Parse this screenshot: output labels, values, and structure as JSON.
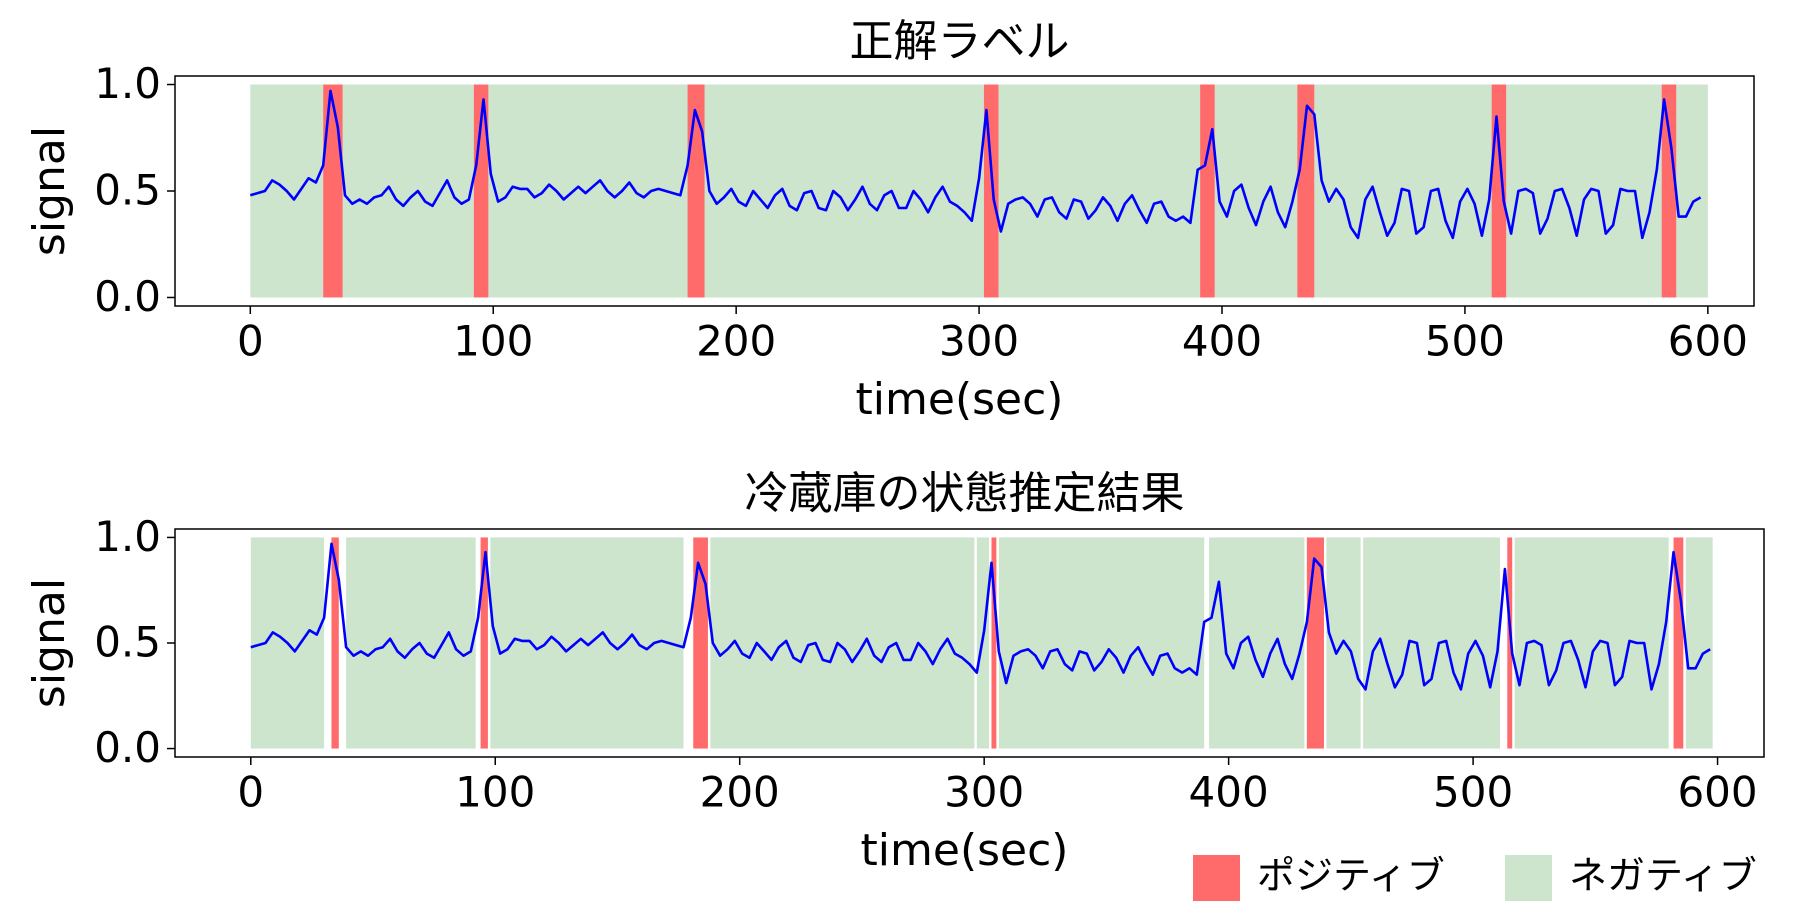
{
  "chart_data": [
    {
      "type": "span-line",
      "title": "正解ラベル",
      "x_label": "time(sec)",
      "y_label": "signal",
      "xlim": [
        -31,
        619
      ],
      "ylim": [
        -0.04,
        1.04
      ],
      "xticks": [
        0,
        100,
        200,
        300,
        400,
        500,
        600
      ],
      "yticks": [
        {
          "value": 0,
          "label": "0.0"
        },
        {
          "value": 0.5,
          "label": "0.5"
        },
        {
          "value": 1,
          "label": "1.0"
        }
      ],
      "spans": [
        {
          "color": "#cde5cc",
          "intervals": [
            [
              0,
              30
            ],
            [
              38,
              92
            ],
            [
              98,
              180
            ],
            [
              187,
              302
            ],
            [
              308,
              391
            ],
            [
              397,
              431
            ],
            [
              438,
              511
            ],
            [
              517,
              581
            ],
            [
              587,
              600
            ]
          ]
        },
        {
          "color": "#ff6a6a",
          "intervals": [
            [
              30,
              38
            ],
            [
              92,
              98
            ],
            [
              180,
              187
            ],
            [
              302,
              308
            ],
            [
              391,
              397
            ],
            [
              431,
              438
            ],
            [
              511,
              517
            ],
            [
              581,
              587
            ]
          ]
        }
      ],
      "line": {
        "color": "#0000ff",
        "x": [
          0,
          3,
          6,
          9,
          12,
          15,
          18,
          21,
          24,
          27,
          30,
          33,
          36,
          39,
          42,
          45,
          48,
          51,
          54,
          57,
          60,
          63,
          66,
          69,
          72,
          75,
          78,
          81,
          84,
          87,
          90,
          93,
          96,
          99,
          102,
          105,
          108,
          111,
          114,
          117,
          120,
          123,
          126,
          129,
          132,
          135,
          138,
          141,
          144,
          147,
          150,
          153,
          156,
          159,
          162,
          165,
          168,
          171,
          174,
          177,
          180,
          183,
          186,
          189,
          192,
          195,
          198,
          201,
          204,
          207,
          210,
          213,
          216,
          219,
          222,
          225,
          228,
          231,
          234,
          237,
          240,
          243,
          246,
          249,
          252,
          255,
          258,
          261,
          264,
          267,
          270,
          273,
          276,
          279,
          282,
          285,
          288,
          291,
          294,
          297,
          300,
          303,
          306,
          309,
          312,
          315,
          318,
          321,
          324,
          327,
          330,
          333,
          336,
          339,
          342,
          345,
          348,
          351,
          354,
          357,
          360,
          363,
          366,
          369,
          372,
          375,
          378,
          381,
          384,
          387,
          390,
          393,
          396,
          399,
          402,
          405,
          408,
          411,
          414,
          417,
          420,
          423,
          426,
          429,
          432,
          435,
          438,
          441,
          444,
          447,
          450,
          453,
          456,
          459,
          462,
          465,
          468,
          471,
          474,
          477,
          480,
          483,
          486,
          489,
          492,
          495,
          498,
          501,
          504,
          507,
          510,
          513,
          516,
          519,
          522,
          525,
          528,
          531,
          534,
          537,
          540,
          543,
          546,
          549,
          552,
          555,
          558,
          561,
          564,
          567,
          570,
          573,
          576,
          579,
          582,
          585,
          588,
          591,
          594,
          597
        ],
        "values": [
          0.48,
          0.49,
          0.5,
          0.55,
          0.53,
          0.5,
          0.46,
          0.51,
          0.56,
          0.54,
          0.62,
          0.97,
          0.8,
          0.48,
          0.44,
          0.46,
          0.44,
          0.47,
          0.48,
          0.52,
          0.46,
          0.43,
          0.47,
          0.5,
          0.45,
          0.43,
          0.49,
          0.55,
          0.47,
          0.44,
          0.46,
          0.62,
          0.93,
          0.58,
          0.45,
          0.47,
          0.52,
          0.51,
          0.51,
          0.47,
          0.49,
          0.53,
          0.5,
          0.46,
          0.49,
          0.52,
          0.49,
          0.52,
          0.55,
          0.5,
          0.47,
          0.5,
          0.54,
          0.49,
          0.47,
          0.5,
          0.51,
          0.5,
          0.49,
          0.48,
          0.62,
          0.88,
          0.78,
          0.5,
          0.44,
          0.47,
          0.51,
          0.45,
          0.43,
          0.5,
          0.46,
          0.42,
          0.48,
          0.51,
          0.43,
          0.41,
          0.49,
          0.5,
          0.42,
          0.41,
          0.5,
          0.47,
          0.41,
          0.46,
          0.52,
          0.44,
          0.41,
          0.48,
          0.5,
          0.42,
          0.42,
          0.5,
          0.46,
          0.4,
          0.47,
          0.52,
          0.45,
          0.43,
          0.4,
          0.36,
          0.56,
          0.88,
          0.46,
          0.31,
          0.44,
          0.46,
          0.47,
          0.44,
          0.38,
          0.46,
          0.47,
          0.4,
          0.37,
          0.46,
          0.45,
          0.37,
          0.41,
          0.47,
          0.43,
          0.36,
          0.44,
          0.48,
          0.41,
          0.35,
          0.44,
          0.45,
          0.38,
          0.36,
          0.38,
          0.35,
          0.6,
          0.62,
          0.79,
          0.45,
          0.38,
          0.5,
          0.53,
          0.42,
          0.34,
          0.45,
          0.52,
          0.4,
          0.33,
          0.45,
          0.6,
          0.9,
          0.86,
          0.55,
          0.45,
          0.51,
          0.46,
          0.33,
          0.28,
          0.46,
          0.52,
          0.4,
          0.29,
          0.35,
          0.51,
          0.5,
          0.3,
          0.33,
          0.5,
          0.51,
          0.36,
          0.28,
          0.45,
          0.51,
          0.44,
          0.29,
          0.46,
          0.85,
          0.45,
          0.3,
          0.5,
          0.51,
          0.49,
          0.3,
          0.37,
          0.5,
          0.51,
          0.42,
          0.29,
          0.46,
          0.51,
          0.5,
          0.3,
          0.34,
          0.51,
          0.5,
          0.5,
          0.28,
          0.4,
          0.6,
          0.93,
          0.7,
          0.38,
          0.38,
          0.45,
          0.47
        ]
      }
    },
    {
      "type": "span-line",
      "title": "冷蔵庫の状態推定結果",
      "x_label": "time(sec)",
      "y_label": "signal",
      "xlim": [
        -31,
        619
      ],
      "ylim": [
        -0.04,
        1.04
      ],
      "xticks": [
        0,
        100,
        200,
        300,
        400,
        500,
        600
      ],
      "yticks": [
        {
          "value": 0,
          "label": "0.0"
        },
        {
          "value": 0.5,
          "label": "0.5"
        },
        {
          "value": 1,
          "label": "1.0"
        }
      ],
      "legend": "lower right",
      "spans": [
        {
          "name": "ポジティブ",
          "color": "#ff6a6a",
          "intervals": [
            [
              33,
              36
            ],
            [
              94,
              97
            ],
            [
              181,
              187
            ],
            [
              303,
              305
            ],
            [
              432,
              439
            ],
            [
              514,
              516
            ],
            [
              582,
              586
            ]
          ]
        },
        {
          "name": "ネガティブ",
          "color": "#cde5cc",
          "intervals": [
            [
              0,
              30
            ],
            [
              39,
              92
            ],
            [
              98,
              177
            ],
            [
              188,
              296
            ],
            [
              297,
              302
            ],
            [
              306,
              390
            ],
            [
              392,
              431
            ],
            [
              440,
              454
            ],
            [
              455,
              511
            ],
            [
              517,
              580
            ],
            [
              587,
              598
            ]
          ]
        }
      ],
      "line": {
        "color": "#0000ff",
        "x": [
          0,
          3,
          6,
          9,
          12,
          15,
          18,
          21,
          24,
          27,
          30,
          33,
          36,
          39,
          42,
          45,
          48,
          51,
          54,
          57,
          60,
          63,
          66,
          69,
          72,
          75,
          78,
          81,
          84,
          87,
          90,
          93,
          96,
          99,
          102,
          105,
          108,
          111,
          114,
          117,
          120,
          123,
          126,
          129,
          132,
          135,
          138,
          141,
          144,
          147,
          150,
          153,
          156,
          159,
          162,
          165,
          168,
          171,
          174,
          177,
          180,
          183,
          186,
          189,
          192,
          195,
          198,
          201,
          204,
          207,
          210,
          213,
          216,
          219,
          222,
          225,
          228,
          231,
          234,
          237,
          240,
          243,
          246,
          249,
          252,
          255,
          258,
          261,
          264,
          267,
          270,
          273,
          276,
          279,
          282,
          285,
          288,
          291,
          294,
          297,
          300,
          303,
          306,
          309,
          312,
          315,
          318,
          321,
          324,
          327,
          330,
          333,
          336,
          339,
          342,
          345,
          348,
          351,
          354,
          357,
          360,
          363,
          366,
          369,
          372,
          375,
          378,
          381,
          384,
          387,
          390,
          393,
          396,
          399,
          402,
          405,
          408,
          411,
          414,
          417,
          420,
          423,
          426,
          429,
          432,
          435,
          438,
          441,
          444,
          447,
          450,
          453,
          456,
          459,
          462,
          465,
          468,
          471,
          474,
          477,
          480,
          483,
          486,
          489,
          492,
          495,
          498,
          501,
          504,
          507,
          510,
          513,
          516,
          519,
          522,
          525,
          528,
          531,
          534,
          537,
          540,
          543,
          546,
          549,
          552,
          555,
          558,
          561,
          564,
          567,
          570,
          573,
          576,
          579,
          582,
          585,
          588,
          591,
          594,
          597
        ],
        "values": [
          0.48,
          0.49,
          0.5,
          0.55,
          0.53,
          0.5,
          0.46,
          0.51,
          0.56,
          0.54,
          0.62,
          0.97,
          0.8,
          0.48,
          0.44,
          0.46,
          0.44,
          0.47,
          0.48,
          0.52,
          0.46,
          0.43,
          0.47,
          0.5,
          0.45,
          0.43,
          0.49,
          0.55,
          0.47,
          0.44,
          0.46,
          0.62,
          0.93,
          0.58,
          0.45,
          0.47,
          0.52,
          0.51,
          0.51,
          0.47,
          0.49,
          0.53,
          0.5,
          0.46,
          0.49,
          0.52,
          0.49,
          0.52,
          0.55,
          0.5,
          0.47,
          0.5,
          0.54,
          0.49,
          0.47,
          0.5,
          0.51,
          0.5,
          0.49,
          0.48,
          0.62,
          0.88,
          0.78,
          0.5,
          0.44,
          0.47,
          0.51,
          0.45,
          0.43,
          0.5,
          0.46,
          0.42,
          0.48,
          0.51,
          0.43,
          0.41,
          0.49,
          0.5,
          0.42,
          0.41,
          0.5,
          0.47,
          0.41,
          0.46,
          0.52,
          0.44,
          0.41,
          0.48,
          0.5,
          0.42,
          0.42,
          0.5,
          0.46,
          0.4,
          0.47,
          0.52,
          0.45,
          0.43,
          0.4,
          0.36,
          0.56,
          0.88,
          0.46,
          0.31,
          0.44,
          0.46,
          0.47,
          0.44,
          0.38,
          0.46,
          0.47,
          0.4,
          0.37,
          0.46,
          0.45,
          0.37,
          0.41,
          0.47,
          0.43,
          0.36,
          0.44,
          0.48,
          0.41,
          0.35,
          0.44,
          0.45,
          0.38,
          0.36,
          0.38,
          0.35,
          0.6,
          0.62,
          0.79,
          0.45,
          0.38,
          0.5,
          0.53,
          0.42,
          0.34,
          0.45,
          0.52,
          0.4,
          0.33,
          0.45,
          0.6,
          0.9,
          0.86,
          0.55,
          0.45,
          0.51,
          0.46,
          0.33,
          0.28,
          0.46,
          0.52,
          0.4,
          0.29,
          0.35,
          0.51,
          0.5,
          0.3,
          0.33,
          0.5,
          0.51,
          0.36,
          0.28,
          0.45,
          0.51,
          0.44,
          0.29,
          0.46,
          0.85,
          0.45,
          0.3,
          0.5,
          0.51,
          0.49,
          0.3,
          0.37,
          0.5,
          0.51,
          0.42,
          0.29,
          0.46,
          0.51,
          0.5,
          0.3,
          0.34,
          0.51,
          0.5,
          0.5,
          0.28,
          0.4,
          0.6,
          0.93,
          0.7,
          0.38,
          0.38,
          0.45,
          0.47
        ]
      }
    }
  ]
}
